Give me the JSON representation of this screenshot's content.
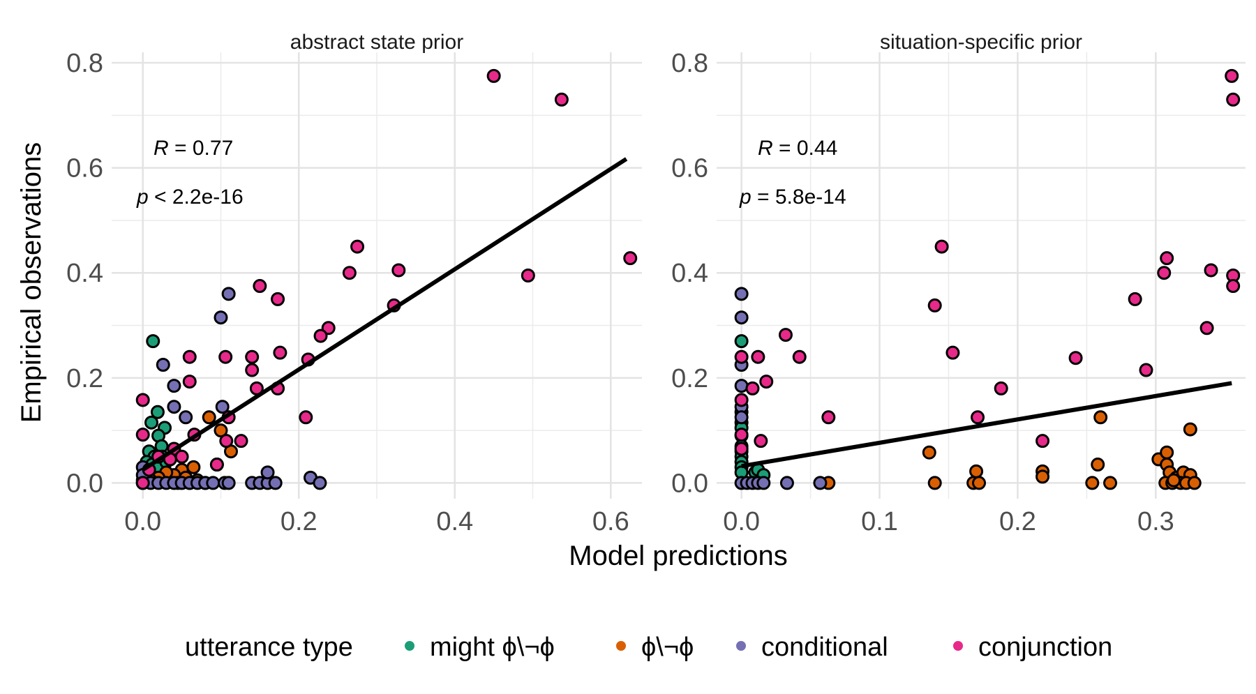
{
  "figure": {
    "xlabel": "Model predictions",
    "ylabel": "Empirical observations",
    "legend": {
      "title": "utterance type",
      "position": "bottom",
      "items": [
        {
          "label": "might ϕ\\¬ϕ",
          "color": "#1b9e77"
        },
        {
          "label": "ϕ\\¬ϕ",
          "color": "#d95f02"
        },
        {
          "label": "conditional",
          "color": "#7570b3"
        },
        {
          "label": "conjunction",
          "color": "#e7298a"
        }
      ]
    }
  },
  "chart_data": [
    {
      "type": "scatter",
      "title": "abstract state prior",
      "xlim": [
        -0.04,
        0.64
      ],
      "ylim": [
        -0.03,
        0.82
      ],
      "xticks": [
        "0.0",
        "0.2",
        "0.4",
        "0.6"
      ],
      "yticks": [
        "0.0",
        "0.2",
        "0.4",
        "0.6",
        "0.8"
      ],
      "stats": {
        "r_label": "R",
        "r_text": " = 0.77",
        "p_label": "p",
        "p_text": " < 2.2e-16"
      },
      "fit": {
        "x": [
          0.0,
          0.62
        ],
        "y": [
          0.025,
          0.617
        ]
      },
      "series": [
        {
          "name": "might ϕ\\¬ϕ",
          "color": "#1b9e77",
          "points": [
            [
              0.013,
              0.27
            ],
            [
              0.011,
              0.115
            ],
            [
              0.019,
              0.135
            ],
            [
              0.028,
              0.105
            ],
            [
              0.02,
              0.09
            ],
            [
              0.024,
              0.07
            ],
            [
              0.008,
              0.06
            ],
            [
              0.015,
              0.05
            ],
            [
              0.005,
              0.04
            ],
            [
              0.012,
              0.035
            ],
            [
              0.018,
              0.03
            ],
            [
              0.003,
              0.02
            ],
            [
              0.007,
              0.01
            ],
            [
              0.0,
              0.005
            ],
            [
              0.025,
              0.05
            ],
            [
              0.03,
              0.04
            ]
          ]
        },
        {
          "name": "ϕ\\¬ϕ",
          "color": "#d95f02",
          "points": [
            [
              0.085,
              0.125
            ],
            [
              0.1,
              0.1
            ],
            [
              0.113,
              0.06
            ],
            [
              0.095,
              0.035
            ],
            [
              0.065,
              0.03
            ],
            [
              0.05,
              0.025
            ],
            [
              0.04,
              0.015
            ],
            [
              0.055,
              0.01
            ],
            [
              0.07,
              0.005
            ],
            [
              0.03,
              0.02
            ],
            [
              0.02,
              0.01
            ],
            [
              0.01,
              0.005
            ],
            [
              0.06,
              0.0
            ],
            [
              0.08,
              0.0
            ],
            [
              0.045,
              0.0
            ]
          ]
        },
        {
          "name": "conditional",
          "color": "#7570b3",
          "points": [
            [
              0.11,
              0.36
            ],
            [
              0.1,
              0.315
            ],
            [
              0.026,
              0.225
            ],
            [
              0.04,
              0.185
            ],
            [
              0.04,
              0.145
            ],
            [
              0.102,
              0.145
            ],
            [
              0.055,
              0.125
            ],
            [
              0.0,
              0.03
            ],
            [
              0.0,
              0.015
            ],
            [
              0.0,
              0.0
            ],
            [
              0.01,
              0.0
            ],
            [
              0.02,
              0.0
            ],
            [
              0.03,
              0.0
            ],
            [
              0.04,
              0.0
            ],
            [
              0.05,
              0.0
            ],
            [
              0.06,
              0.0
            ],
            [
              0.07,
              0.0
            ],
            [
              0.08,
              0.0
            ],
            [
              0.09,
              0.0
            ],
            [
              0.105,
              0.0
            ],
            [
              0.11,
              0.0
            ],
            [
              0.14,
              0.0
            ],
            [
              0.15,
              0.0
            ],
            [
              0.16,
              0.0
            ],
            [
              0.17,
              0.0
            ],
            [
              0.16,
              0.02
            ],
            [
              0.215,
              0.01
            ],
            [
              0.227,
              0.0
            ]
          ]
        },
        {
          "name": "conjunction",
          "color": "#e7298a",
          "points": [
            [
              0.45,
              0.775
            ],
            [
              0.537,
              0.73
            ],
            [
              0.625,
              0.428
            ],
            [
              0.494,
              0.395
            ],
            [
              0.275,
              0.45
            ],
            [
              0.265,
              0.4
            ],
            [
              0.328,
              0.405
            ],
            [
              0.322,
              0.338
            ],
            [
              0.15,
              0.375
            ],
            [
              0.173,
              0.35
            ],
            [
              0.238,
              0.295
            ],
            [
              0.228,
              0.28
            ],
            [
              0.212,
              0.235
            ],
            [
              0.176,
              0.248
            ],
            [
              0.14,
              0.24
            ],
            [
              0.14,
              0.215
            ],
            [
              0.146,
              0.18
            ],
            [
              0.173,
              0.18
            ],
            [
              0.06,
              0.24
            ],
            [
              0.106,
              0.24
            ],
            [
              0.06,
              0.193
            ],
            [
              0.209,
              0.125
            ],
            [
              0.11,
              0.125
            ],
            [
              0.126,
              0.08
            ],
            [
              0.107,
              0.08
            ],
            [
              0.066,
              0.092
            ],
            [
              0.0,
              0.158
            ],
            [
              0.0,
              0.092
            ],
            [
              0.04,
              0.065
            ],
            [
              0.05,
              0.05
            ],
            [
              0.035,
              0.045
            ],
            [
              0.095,
              0.035
            ],
            [
              0.02,
              0.05
            ],
            [
              0.008,
              0.025
            ],
            [
              0.0,
              0.0
            ]
          ]
        }
      ]
    },
    {
      "type": "scatter",
      "title": "situation-specific prior",
      "xlim": [
        -0.018,
        0.365
      ],
      "ylim": [
        -0.03,
        0.82
      ],
      "xticks": [
        "0.0",
        "0.1",
        "0.2",
        "0.3"
      ],
      "yticks": [
        "0.0",
        "0.2",
        "0.4",
        "0.6",
        "0.8"
      ],
      "stats": {
        "r_label": "R",
        "r_text": " = 0.44",
        "p_label": "p",
        "p_text": " = 5.8e-14"
      },
      "fit": {
        "x": [
          0.0,
          0.355
        ],
        "y": [
          0.032,
          0.19
        ]
      },
      "series": [
        {
          "name": "might ϕ\\¬ϕ",
          "color": "#1b9e77",
          "points": [
            [
              0.0,
              0.27
            ],
            [
              0.0,
              0.135
            ],
            [
              0.0,
              0.115
            ],
            [
              0.0,
              0.105
            ],
            [
              0.0,
              0.09
            ],
            [
              0.0,
              0.07
            ],
            [
              0.0,
              0.06
            ],
            [
              0.0,
              0.05
            ],
            [
              0.0,
              0.04
            ],
            [
              0.0,
              0.03
            ],
            [
              0.0,
              0.02
            ],
            [
              0.01,
              0.02
            ],
            [
              0.012,
              0.025
            ],
            [
              0.016,
              0.015
            ]
          ]
        },
        {
          "name": "ϕ\\¬ϕ",
          "color": "#d95f02",
          "points": [
            [
              0.063,
              0.0
            ],
            [
              0.136,
              0.058
            ],
            [
              0.14,
              0.0
            ],
            [
              0.17,
              0.022
            ],
            [
              0.168,
              0.0
            ],
            [
              0.172,
              0.0
            ],
            [
              0.218,
              0.022
            ],
            [
              0.218,
              0.012
            ],
            [
              0.26,
              0.125
            ],
            [
              0.258,
              0.035
            ],
            [
              0.254,
              0.0
            ],
            [
              0.267,
              0.0
            ],
            [
              0.302,
              0.045
            ],
            [
              0.308,
              0.058
            ],
            [
              0.308,
              0.035
            ],
            [
              0.325,
              0.102
            ],
            [
              0.31,
              0.02
            ],
            [
              0.315,
              0.01
            ],
            [
              0.32,
              0.02
            ],
            [
              0.325,
              0.015
            ],
            [
              0.307,
              0.0
            ],
            [
              0.312,
              0.0
            ],
            [
              0.318,
              0.0
            ],
            [
              0.322,
              0.0
            ],
            [
              0.328,
              0.0
            ],
            [
              0.313,
              0.005
            ]
          ]
        },
        {
          "name": "conditional",
          "color": "#7570b3",
          "points": [
            [
              0.0,
              0.36
            ],
            [
              0.0,
              0.315
            ],
            [
              0.0,
              0.225
            ],
            [
              0.0,
              0.185
            ],
            [
              0.0,
              0.145
            ],
            [
              0.0,
              0.125
            ],
            [
              0.0,
              0.0
            ],
            [
              0.004,
              0.0
            ],
            [
              0.008,
              0.0
            ],
            [
              0.012,
              0.0
            ],
            [
              0.016,
              0.0
            ],
            [
              0.033,
              0.0
            ],
            [
              0.057,
              0.0
            ]
          ]
        },
        {
          "name": "conjunction",
          "color": "#e7298a",
          "points": [
            [
              0.355,
              0.775
            ],
            [
              0.356,
              0.73
            ],
            [
              0.356,
              0.395
            ],
            [
              0.356,
              0.375
            ],
            [
              0.34,
              0.405
            ],
            [
              0.337,
              0.295
            ],
            [
              0.308,
              0.428
            ],
            [
              0.306,
              0.4
            ],
            [
              0.293,
              0.215
            ],
            [
              0.285,
              0.35
            ],
            [
              0.242,
              0.238
            ],
            [
              0.218,
              0.08
            ],
            [
              0.188,
              0.18
            ],
            [
              0.171,
              0.125
            ],
            [
              0.153,
              0.248
            ],
            [
              0.145,
              0.45
            ],
            [
              0.14,
              0.338
            ],
            [
              0.063,
              0.125
            ],
            [
              0.042,
              0.24
            ],
            [
              0.032,
              0.282
            ],
            [
              0.018,
              0.193
            ],
            [
              0.014,
              0.08
            ],
            [
              0.012,
              0.24
            ],
            [
              0.008,
              0.18
            ],
            [
              0.0,
              0.24
            ],
            [
              0.0,
              0.158
            ],
            [
              0.0,
              0.092
            ],
            [
              0.0,
              0.065
            ]
          ]
        }
      ]
    }
  ]
}
